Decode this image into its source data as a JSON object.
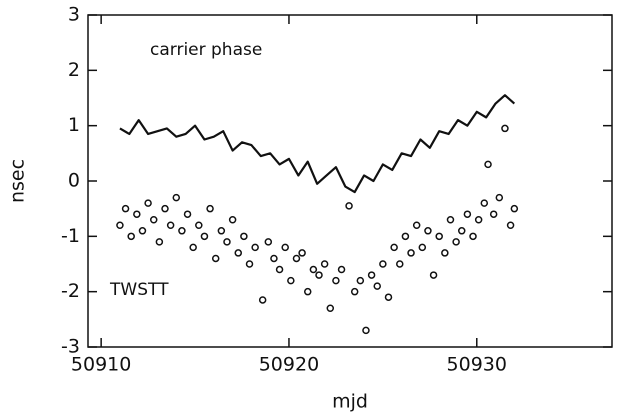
{
  "chart_data": {
    "type": "line",
    "x_label": "mjd",
    "y_label": "nsec",
    "xlim": [
      50909.3,
      50937.2
    ],
    "xticks": [
      50910,
      50920,
      50930
    ],
    "ylim": [
      -3,
      3
    ],
    "yticks": [
      -3,
      -2,
      -1,
      0,
      1,
      2,
      3
    ],
    "series": [
      {
        "name": "carrier phase",
        "type": "line",
        "color": "#111111",
        "x": [
          50911,
          50911.5,
          50912,
          50912.5,
          50913,
          50913.5,
          50914,
          50914.5,
          50915,
          50915.5,
          50916,
          50916.5,
          50917,
          50917.5,
          50918,
          50918.5,
          50919,
          50919.5,
          50920,
          50920.5,
          50921,
          50921.5,
          50922,
          50922.5,
          50923,
          50923.5,
          50924,
          50924.5,
          50925,
          50925.5,
          50926,
          50926.5,
          50927,
          50927.5,
          50928,
          50928.5,
          50929,
          50929.5,
          50930,
          50930.5,
          50931,
          50931.5,
          50932
        ],
        "values": [
          0.95,
          0.85,
          1.1,
          0.85,
          0.9,
          0.95,
          0.8,
          0.85,
          1.0,
          0.75,
          0.8,
          0.9,
          0.55,
          0.7,
          0.65,
          0.45,
          0.5,
          0.3,
          0.4,
          0.1,
          0.35,
          -0.05,
          0.1,
          0.25,
          -0.1,
          -0.2,
          0.1,
          0.0,
          0.3,
          0.2,
          0.5,
          0.45,
          0.75,
          0.6,
          0.9,
          0.85,
          1.1,
          1.0,
          1.25,
          1.15,
          1.4,
          1.55,
          1.4
        ]
      },
      {
        "name": "TWSTT",
        "type": "scatter",
        "color": "#111111",
        "x": [
          50911,
          50911.3,
          50911.6,
          50911.9,
          50912.2,
          50912.5,
          50912.8,
          50913.1,
          50913.4,
          50913.7,
          50914,
          50914.3,
          50914.6,
          50914.9,
          50915.2,
          50915.5,
          50915.8,
          50916.1,
          50916.4,
          50916.7,
          50917,
          50917.3,
          50917.6,
          50917.9,
          50918.2,
          50918.6,
          50918.9,
          50919.2,
          50919.5,
          50919.8,
          50920.1,
          50920.4,
          50920.7,
          50921,
          50921.3,
          50921.6,
          50921.9,
          50922.2,
          50922.5,
          50922.8,
          50923.2,
          50923.5,
          50923.8,
          50924.1,
          50924.4,
          50924.7,
          50925,
          50925.3,
          50925.6,
          50925.9,
          50926.2,
          50926.5,
          50926.8,
          50927.1,
          50927.4,
          50927.7,
          50928,
          50928.3,
          50928.6,
          50928.9,
          50929.2,
          50929.5,
          50929.8,
          50930.1,
          50930.4,
          50930.6,
          50930.9,
          50931.2,
          50931.5,
          50931.8,
          50932
        ],
        "values": [
          -0.8,
          -0.5,
          -1.0,
          -0.6,
          -0.9,
          -0.4,
          -0.7,
          -1.1,
          -0.5,
          -0.8,
          -0.3,
          -0.9,
          -0.6,
          -1.2,
          -0.8,
          -1.0,
          -0.5,
          -1.4,
          -0.9,
          -1.1,
          -0.7,
          -1.3,
          -1.0,
          -1.5,
          -1.2,
          -2.15,
          -1.1,
          -1.4,
          -1.6,
          -1.2,
          -1.8,
          -1.4,
          -1.3,
          -2.0,
          -1.6,
          -1.7,
          -1.5,
          -2.3,
          -1.8,
          -1.6,
          -0.45,
          -2.0,
          -1.8,
          -2.7,
          -1.7,
          -1.9,
          -1.5,
          -2.1,
          -1.2,
          -1.5,
          -1.0,
          -1.3,
          -0.8,
          -1.2,
          -0.9,
          -1.7,
          -1.0,
          -1.3,
          -0.7,
          -1.1,
          -0.9,
          -0.6,
          -1.0,
          -0.7,
          -0.4,
          0.3,
          -0.6,
          -0.3,
          0.95,
          -0.8,
          -0.5
        ]
      }
    ]
  }
}
